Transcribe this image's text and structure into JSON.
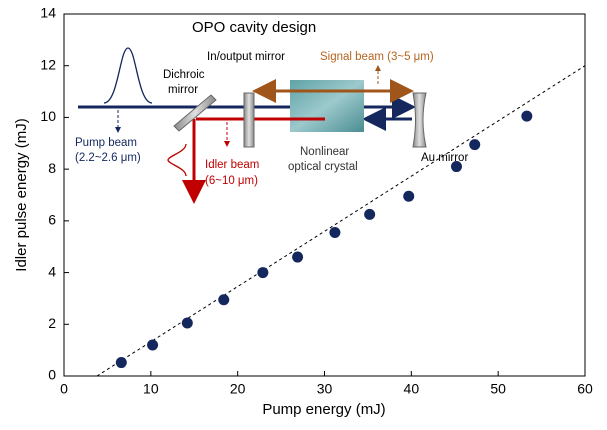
{
  "chart_data": {
    "type": "scatter",
    "x_label": "Pump energy (mJ)",
    "y_label": "Idler pulse energy (mJ)",
    "x": [
      6.6,
      10.2,
      14.2,
      18.4,
      22.9,
      26.9,
      31.2,
      35.2,
      39.7,
      45.2,
      47.3,
      53.3
    ],
    "values": [
      0.52,
      1.2,
      2.05,
      2.95,
      4.0,
      4.6,
      5.55,
      6.25,
      6.95,
      8.1,
      8.95,
      10.05
    ],
    "color": "#14285e",
    "fit": {
      "x": [
        3.8,
        60
      ],
      "y": [
        0,
        12.0
      ]
    },
    "xlim": [
      0,
      60
    ],
    "xticks": [
      0,
      10,
      20,
      30,
      40,
      50,
      60
    ],
    "ylim": [
      0,
      14
    ],
    "yticks": [
      0,
      2,
      4,
      6,
      8,
      10,
      12,
      14
    ],
    "grid": false,
    "inset": {
      "title": "OPO cavity design",
      "io_mirror": "In/output mirror",
      "signal": "Signal beam (3~5 μm)",
      "dichroic": [
        "Dichroic",
        "mirror"
      ],
      "pump": [
        "Pump beam",
        "(2.2~2.6 μm)"
      ],
      "idler": [
        "Idler beam",
        "(6~10 μm)"
      ],
      "crystal": [
        "Nonlinear",
        "optical crystal"
      ],
      "au": "Au mirror"
    }
  }
}
